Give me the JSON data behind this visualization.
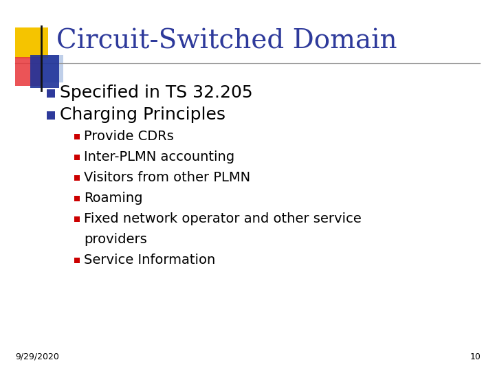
{
  "title": "Circuit-Switched Domain",
  "title_color": "#2E3A9B",
  "background_color": "#FFFFFF",
  "bullet1": "Specified in TS 32.205",
  "bullet2": "Charging Principles",
  "sub_bullets": [
    "Provide CDRs",
    "Inter-PLMN accounting",
    "Visitors from other PLMN",
    "Roaming",
    "Fixed network operator and other service",
    "providers",
    "Service Information"
  ],
  "bullet_color": "#2E3A9B",
  "sub_bullet_color": "#CC0000",
  "text_color": "#000000",
  "date_text": "9/29/2020",
  "page_num": "10",
  "logo_yellow": "#F5C400",
  "logo_red": "#E8363A",
  "logo_blue": "#1F3399",
  "logo_lightblue": "#8BA8D8",
  "line_color": "#999999"
}
